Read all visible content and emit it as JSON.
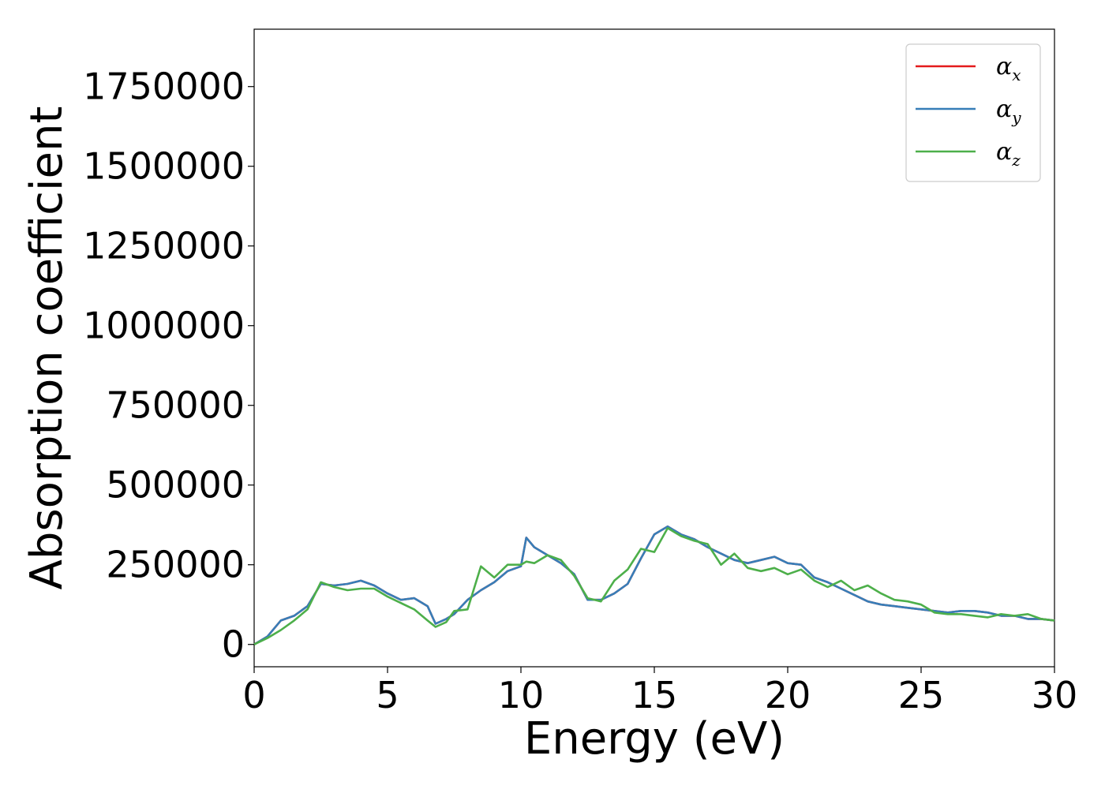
{
  "chart_data": {
    "type": "line",
    "xlabel": "Energy (eV)",
    "ylabel": "Absorption coefficient",
    "xlim": [
      0,
      30
    ],
    "ylim": [
      -70000,
      1930000
    ],
    "x_ticks": [
      0,
      5,
      10,
      15,
      20,
      25,
      30
    ],
    "y_ticks": [
      0,
      250000,
      500000,
      750000,
      1000000,
      1250000,
      1500000,
      1750000
    ],
    "grid": false,
    "legend_position": "top-right",
    "series": [
      {
        "name": "α",
        "sub": "x",
        "color": "#e41a1c",
        "x": [
          0,
          0.5,
          1,
          1.5,
          2,
          2.5,
          3,
          3.5,
          4,
          4.5,
          5,
          5.5,
          6,
          6.5,
          6.8,
          7.2,
          7.5,
          8,
          8.5,
          9,
          9.5,
          10,
          10.2,
          10.5,
          11,
          11.5,
          12,
          12.5,
          13,
          13.5,
          14,
          14.5,
          15,
          15.5,
          16,
          16.5,
          17,
          17.5,
          18,
          18.5,
          19,
          19.5,
          20,
          20.5,
          21,
          21.5,
          22,
          22.5,
          23,
          23.5,
          24,
          24.5,
          25,
          25.5,
          26,
          26.5,
          27,
          27.5,
          28,
          28.5,
          29,
          29.5,
          30
        ],
        "values": [
          0,
          25000,
          75000,
          90000,
          120000,
          190000,
          185000,
          190000,
          200000,
          185000,
          160000,
          140000,
          145000,
          120000,
          65000,
          80000,
          95000,
          140000,
          170000,
          195000,
          230000,
          245000,
          335000,
          305000,
          280000,
          255000,
          220000,
          140000,
          140000,
          160000,
          190000,
          270000,
          345000,
          370000,
          345000,
          330000,
          305000,
          285000,
          265000,
          255000,
          265000,
          275000,
          255000,
          250000,
          210000,
          195000,
          175000,
          155000,
          135000,
          125000,
          120000,
          115000,
          110000,
          105000,
          100000,
          105000,
          105000,
          100000,
          90000,
          90000,
          80000,
          80000,
          75000
        ]
      },
      {
        "name": "α",
        "sub": "y",
        "color": "#377eb8",
        "x": [
          0,
          0.5,
          1,
          1.5,
          2,
          2.5,
          3,
          3.5,
          4,
          4.5,
          5,
          5.5,
          6,
          6.5,
          6.8,
          7.2,
          7.5,
          8,
          8.5,
          9,
          9.5,
          10,
          10.2,
          10.5,
          11,
          11.5,
          12,
          12.5,
          13,
          13.5,
          14,
          14.5,
          15,
          15.5,
          16,
          16.5,
          17,
          17.5,
          18,
          18.5,
          19,
          19.5,
          20,
          20.5,
          21,
          21.5,
          22,
          22.5,
          23,
          23.5,
          24,
          24.5,
          25,
          25.5,
          26,
          26.5,
          27,
          27.5,
          28,
          28.5,
          29,
          29.5,
          30
        ],
        "values": [
          0,
          25000,
          75000,
          90000,
          120000,
          190000,
          185000,
          190000,
          200000,
          185000,
          160000,
          140000,
          145000,
          120000,
          65000,
          80000,
          95000,
          140000,
          170000,
          195000,
          230000,
          245000,
          335000,
          305000,
          280000,
          255000,
          220000,
          140000,
          140000,
          160000,
          190000,
          270000,
          345000,
          370000,
          345000,
          330000,
          305000,
          285000,
          265000,
          255000,
          265000,
          275000,
          255000,
          250000,
          210000,
          195000,
          175000,
          155000,
          135000,
          125000,
          120000,
          115000,
          110000,
          105000,
          100000,
          105000,
          105000,
          100000,
          90000,
          90000,
          80000,
          80000,
          75000
        ]
      },
      {
        "name": "α",
        "sub": "z",
        "color": "#4daf4a",
        "x": [
          0,
          0.5,
          1,
          1.5,
          2,
          2.5,
          3,
          3.5,
          4,
          4.5,
          5,
          5.5,
          6,
          6.5,
          6.8,
          7.2,
          7.5,
          8,
          8.5,
          9,
          9.5,
          10,
          10.2,
          10.5,
          11,
          11.5,
          12,
          12.5,
          13,
          13.5,
          14,
          14.5,
          15,
          15.5,
          16,
          16.5,
          17,
          17.5,
          18,
          18.5,
          19,
          19.5,
          20,
          20.5,
          21,
          21.5,
          22,
          22.5,
          23,
          23.5,
          24,
          24.5,
          25,
          25.5,
          26,
          26.5,
          27,
          27.5,
          28,
          28.5,
          29,
          29.5,
          30
        ],
        "values": [
          0,
          20000,
          45000,
          75000,
          110000,
          195000,
          180000,
          170000,
          175000,
          175000,
          150000,
          130000,
          110000,
          75000,
          55000,
          70000,
          105000,
          110000,
          245000,
          210000,
          250000,
          250000,
          260000,
          255000,
          280000,
          265000,
          215000,
          145000,
          135000,
          200000,
          235000,
          300000,
          290000,
          365000,
          340000,
          325000,
          315000,
          250000,
          285000,
          240000,
          230000,
          240000,
          220000,
          235000,
          200000,
          180000,
          200000,
          170000,
          185000,
          160000,
          140000,
          135000,
          125000,
          100000,
          95000,
          95000,
          90000,
          85000,
          95000,
          90000,
          95000,
          80000,
          75000
        ]
      }
    ]
  }
}
